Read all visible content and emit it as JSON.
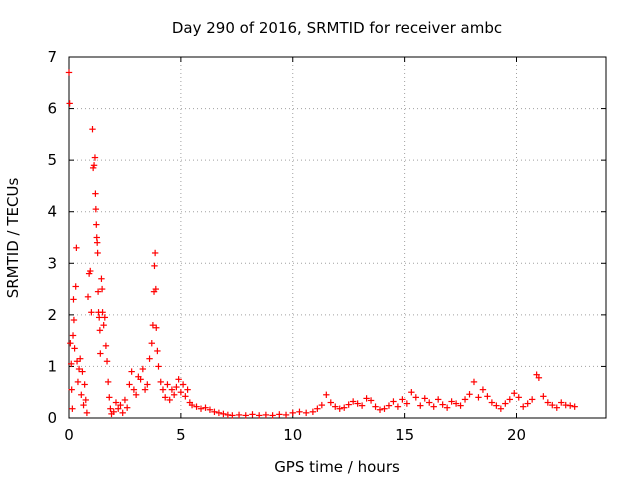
{
  "chart_data": {
    "type": "scatter",
    "title": "Day 290 of 2016, SRMTID for receiver ambc",
    "xlabel": "GPS time / hours",
    "ylabel": "SRMTID / TECUs",
    "xlim": [
      0,
      24
    ],
    "ylim": [
      0,
      7
    ],
    "xticks": [
      0,
      5,
      10,
      15,
      20
    ],
    "yticks": [
      0,
      1,
      2,
      3,
      4,
      5,
      6,
      7
    ],
    "grid": true,
    "legend": "none",
    "marker": "plus",
    "series": [
      {
        "name": "SRMTID",
        "color": "#ff0000",
        "points": [
          [
            0.0,
            6.7
          ],
          [
            0.03,
            6.1
          ],
          [
            0.06,
            1.45
          ],
          [
            0.1,
            1.05
          ],
          [
            0.12,
            0.55
          ],
          [
            0.15,
            0.18
          ],
          [
            0.18,
            1.6
          ],
          [
            0.2,
            2.3
          ],
          [
            0.22,
            1.9
          ],
          [
            0.25,
            1.35
          ],
          [
            0.3,
            2.55
          ],
          [
            0.33,
            3.3
          ],
          [
            0.36,
            1.1
          ],
          [
            0.4,
            0.7
          ],
          [
            0.45,
            0.95
          ],
          [
            0.5,
            1.15
          ],
          [
            0.55,
            0.45
          ],
          [
            0.6,
            0.9
          ],
          [
            0.65,
            0.25
          ],
          [
            0.7,
            0.65
          ],
          [
            0.75,
            0.35
          ],
          [
            0.8,
            0.1
          ],
          [
            0.85,
            2.35
          ],
          [
            0.9,
            2.8
          ],
          [
            0.95,
            2.85
          ],
          [
            1.0,
            2.05
          ],
          [
            1.05,
            5.6
          ],
          [
            1.08,
            4.85
          ],
          [
            1.12,
            4.9
          ],
          [
            1.16,
            5.05
          ],
          [
            1.18,
            4.35
          ],
          [
            1.2,
            4.05
          ],
          [
            1.22,
            3.75
          ],
          [
            1.24,
            3.5
          ],
          [
            1.26,
            3.4
          ],
          [
            1.28,
            3.2
          ],
          [
            1.3,
            2.45
          ],
          [
            1.32,
            2.05
          ],
          [
            1.35,
            1.95
          ],
          [
            1.38,
            1.7
          ],
          [
            1.4,
            1.25
          ],
          [
            1.45,
            2.7
          ],
          [
            1.48,
            2.5
          ],
          [
            1.5,
            2.05
          ],
          [
            1.55,
            1.8
          ],
          [
            1.6,
            1.95
          ],
          [
            1.65,
            1.4
          ],
          [
            1.7,
            1.1
          ],
          [
            1.75,
            0.7
          ],
          [
            1.8,
            0.4
          ],
          [
            1.85,
            0.18
          ],
          [
            1.9,
            0.08
          ],
          [
            2.0,
            0.12
          ],
          [
            2.1,
            0.3
          ],
          [
            2.2,
            0.18
          ],
          [
            2.3,
            0.25
          ],
          [
            2.4,
            0.1
          ],
          [
            2.5,
            0.35
          ],
          [
            2.6,
            0.2
          ],
          [
            2.7,
            0.65
          ],
          [
            2.8,
            0.9
          ],
          [
            2.9,
            0.55
          ],
          [
            3.0,
            0.45
          ],
          [
            3.1,
            0.8
          ],
          [
            3.2,
            0.75
          ],
          [
            3.3,
            0.95
          ],
          [
            3.4,
            0.55
          ],
          [
            3.5,
            0.65
          ],
          [
            3.6,
            1.15
          ],
          [
            3.7,
            1.45
          ],
          [
            3.75,
            1.8
          ],
          [
            3.8,
            2.45
          ],
          [
            3.82,
            2.95
          ],
          [
            3.85,
            3.2
          ],
          [
            3.88,
            2.5
          ],
          [
            3.9,
            1.75
          ],
          [
            3.95,
            1.3
          ],
          [
            4.0,
            1.0
          ],
          [
            4.1,
            0.7
          ],
          [
            4.2,
            0.55
          ],
          [
            4.3,
            0.4
          ],
          [
            4.4,
            0.65
          ],
          [
            4.5,
            0.35
          ],
          [
            4.6,
            0.55
          ],
          [
            4.7,
            0.45
          ],
          [
            4.8,
            0.6
          ],
          [
            4.9,
            0.75
          ],
          [
            5.0,
            0.5
          ],
          [
            5.1,
            0.65
          ],
          [
            5.2,
            0.42
          ],
          [
            5.3,
            0.55
          ],
          [
            5.4,
            0.3
          ],
          [
            5.5,
            0.25
          ],
          [
            5.7,
            0.22
          ],
          [
            5.9,
            0.18
          ],
          [
            6.1,
            0.2
          ],
          [
            6.3,
            0.16
          ],
          [
            6.5,
            0.12
          ],
          [
            6.7,
            0.1
          ],
          [
            6.9,
            0.08
          ],
          [
            7.1,
            0.06
          ],
          [
            7.3,
            0.05
          ],
          [
            7.6,
            0.06
          ],
          [
            7.9,
            0.05
          ],
          [
            8.2,
            0.07
          ],
          [
            8.5,
            0.05
          ],
          [
            8.8,
            0.06
          ],
          [
            9.1,
            0.05
          ],
          [
            9.4,
            0.07
          ],
          [
            9.7,
            0.06
          ],
          [
            10.0,
            0.1
          ],
          [
            10.3,
            0.12
          ],
          [
            10.6,
            0.1
          ],
          [
            10.9,
            0.12
          ],
          [
            11.1,
            0.18
          ],
          [
            11.3,
            0.25
          ],
          [
            11.5,
            0.45
          ],
          [
            11.7,
            0.3
          ],
          [
            11.9,
            0.22
          ],
          [
            12.1,
            0.18
          ],
          [
            12.3,
            0.2
          ],
          [
            12.5,
            0.26
          ],
          [
            12.7,
            0.32
          ],
          [
            12.9,
            0.28
          ],
          [
            13.1,
            0.24
          ],
          [
            13.3,
            0.38
          ],
          [
            13.5,
            0.34
          ],
          [
            13.7,
            0.22
          ],
          [
            13.9,
            0.16
          ],
          [
            14.1,
            0.18
          ],
          [
            14.3,
            0.24
          ],
          [
            14.5,
            0.32
          ],
          [
            14.7,
            0.22
          ],
          [
            14.9,
            0.36
          ],
          [
            15.1,
            0.28
          ],
          [
            15.3,
            0.5
          ],
          [
            15.5,
            0.4
          ],
          [
            15.7,
            0.24
          ],
          [
            15.9,
            0.38
          ],
          [
            16.1,
            0.3
          ],
          [
            16.3,
            0.22
          ],
          [
            16.5,
            0.36
          ],
          [
            16.7,
            0.26
          ],
          [
            16.9,
            0.2
          ],
          [
            17.1,
            0.32
          ],
          [
            17.3,
            0.28
          ],
          [
            17.5,
            0.24
          ],
          [
            17.7,
            0.36
          ],
          [
            17.9,
            0.46
          ],
          [
            18.1,
            0.7
          ],
          [
            18.3,
            0.4
          ],
          [
            18.5,
            0.55
          ],
          [
            18.7,
            0.42
          ],
          [
            18.9,
            0.3
          ],
          [
            19.1,
            0.24
          ],
          [
            19.3,
            0.18
          ],
          [
            19.5,
            0.28
          ],
          [
            19.7,
            0.36
          ],
          [
            19.9,
            0.48
          ],
          [
            20.1,
            0.4
          ],
          [
            20.3,
            0.22
          ],
          [
            20.5,
            0.28
          ],
          [
            20.7,
            0.36
          ],
          [
            20.9,
            0.84
          ],
          [
            21.0,
            0.78
          ],
          [
            21.2,
            0.42
          ],
          [
            21.4,
            0.3
          ],
          [
            21.6,
            0.25
          ],
          [
            21.8,
            0.2
          ],
          [
            22.0,
            0.3
          ],
          [
            22.2,
            0.25
          ],
          [
            22.4,
            0.24
          ],
          [
            22.6,
            0.22
          ]
        ]
      }
    ]
  }
}
